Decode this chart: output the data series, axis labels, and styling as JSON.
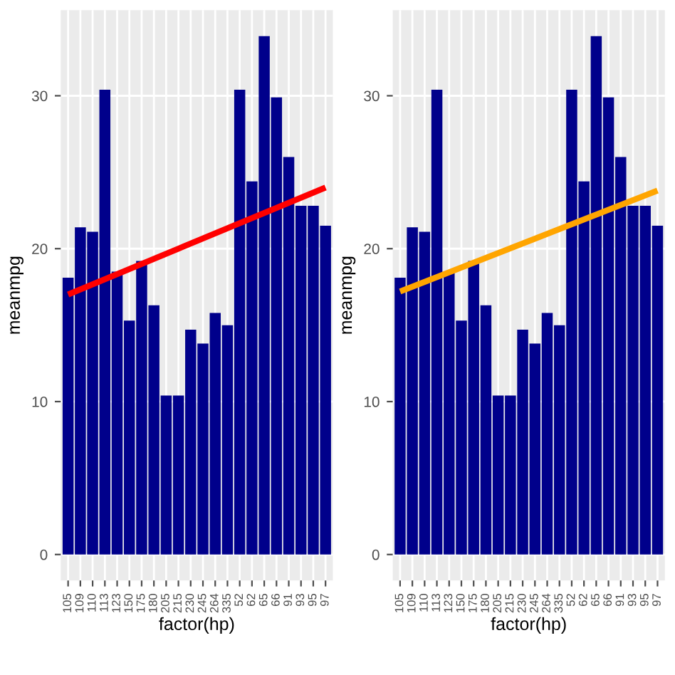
{
  "chart_data": [
    {
      "type": "bar",
      "xlabel": "factor(hp)",
      "ylabel": "meanmpg",
      "categories": [
        "105",
        "109",
        "110",
        "113",
        "123",
        "150",
        "175",
        "180",
        "205",
        "215",
        "230",
        "245",
        "264",
        "335",
        "52",
        "62",
        "65",
        "66",
        "91",
        "93",
        "95",
        "97"
      ],
      "series": [
        {
          "color": "#00008b",
          "values": [
            18.1,
            21.4,
            21.1,
            30.4,
            18.5,
            15.3,
            19.2,
            16.3,
            10.4,
            10.4,
            14.7,
            13.8,
            15.8,
            15.0,
            30.4,
            24.4,
            33.9,
            29.9,
            26.0,
            22.8,
            22.8,
            21.5
          ]
        },
        {
          "type": "line",
          "color": "#ff0000",
          "x": [
            "105",
            "97"
          ],
          "values": [
            17.0,
            24.0
          ]
        }
      ],
      "ylim": [
        -1.7,
        35.6
      ],
      "yticks": [
        0,
        10,
        20,
        30
      ],
      "grid": true
    },
    {
      "type": "bar",
      "xlabel": "factor(hp)",
      "ylabel": "meanmpg",
      "categories": [
        "105",
        "109",
        "110",
        "113",
        "123",
        "150",
        "175",
        "180",
        "205",
        "215",
        "230",
        "245",
        "264",
        "335",
        "52",
        "62",
        "65",
        "66",
        "91",
        "93",
        "95",
        "97"
      ],
      "series": [
        {
          "color": "#00008b",
          "values": [
            18.1,
            21.4,
            21.1,
            30.4,
            18.5,
            15.3,
            19.2,
            16.3,
            10.4,
            10.4,
            14.7,
            13.8,
            15.8,
            15.0,
            30.4,
            24.4,
            33.9,
            29.9,
            26.0,
            22.8,
            22.8,
            21.5
          ]
        },
        {
          "type": "line",
          "color": "#ffa500",
          "x": [
            "105",
            "97"
          ],
          "values": [
            17.2,
            23.8
          ]
        }
      ],
      "ylim": [
        -1.7,
        35.6
      ],
      "yticks": [
        0,
        10,
        20,
        30
      ],
      "grid": true
    }
  ]
}
